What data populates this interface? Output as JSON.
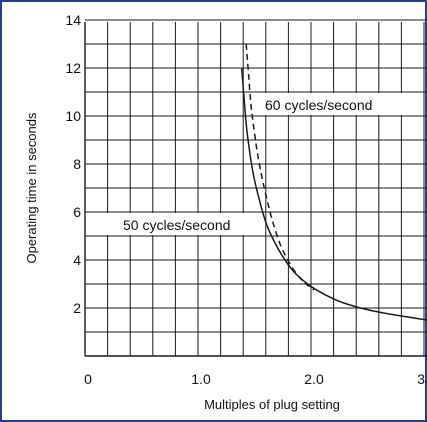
{
  "colors": {
    "frame": "#1f3f9a",
    "grid": "#1a1a1a",
    "curve": "#1a1a1a",
    "background": "#ffffff"
  },
  "chart_data": {
    "type": "line",
    "xlabel": "Multiples of plug setting",
    "ylabel": "Operating time in seconds",
    "xlim": [
      0,
      3.0
    ],
    "ylim": [
      0,
      14
    ],
    "x_ticks": [
      {
        "value": 0,
        "label": "0"
      },
      {
        "value": 1.0,
        "label": "1.0"
      },
      {
        "value": 2.0,
        "label": "2.0"
      },
      {
        "value": 3.0,
        "label": "3.0"
      }
    ],
    "y_ticks": [
      {
        "value": 2,
        "label": "2"
      },
      {
        "value": 4,
        "label": "4"
      },
      {
        "value": 6,
        "label": "6"
      },
      {
        "value": 8,
        "label": "8"
      },
      {
        "value": 10,
        "label": "10"
      },
      {
        "value": 12,
        "label": "12"
      },
      {
        "value": 14,
        "label": "14"
      }
    ],
    "grid": true,
    "series": [
      {
        "name": "50 cycles/second",
        "style": "solid",
        "x": [
          1.36,
          1.38,
          1.4,
          1.43,
          1.46,
          1.5,
          1.55,
          1.6,
          1.7,
          1.8,
          1.9,
          2.0,
          2.2,
          2.4,
          2.6,
          2.8,
          3.0
        ],
        "y": [
          12.0,
          10.8,
          9.6,
          8.5,
          7.6,
          6.8,
          5.9,
          5.2,
          4.3,
          3.6,
          3.15,
          2.8,
          2.3,
          2.0,
          1.8,
          1.65,
          1.5
        ]
      },
      {
        "name": "60 cycles/second",
        "style": "dashed",
        "x": [
          1.4,
          1.42,
          1.44,
          1.47,
          1.5,
          1.54,
          1.58,
          1.62,
          1.7,
          1.8,
          1.9,
          2.0
        ],
        "y": [
          13.0,
          11.8,
          10.5,
          9.4,
          8.4,
          7.4,
          6.6,
          5.8,
          4.6,
          3.7,
          3.1,
          2.75
        ]
      }
    ]
  }
}
